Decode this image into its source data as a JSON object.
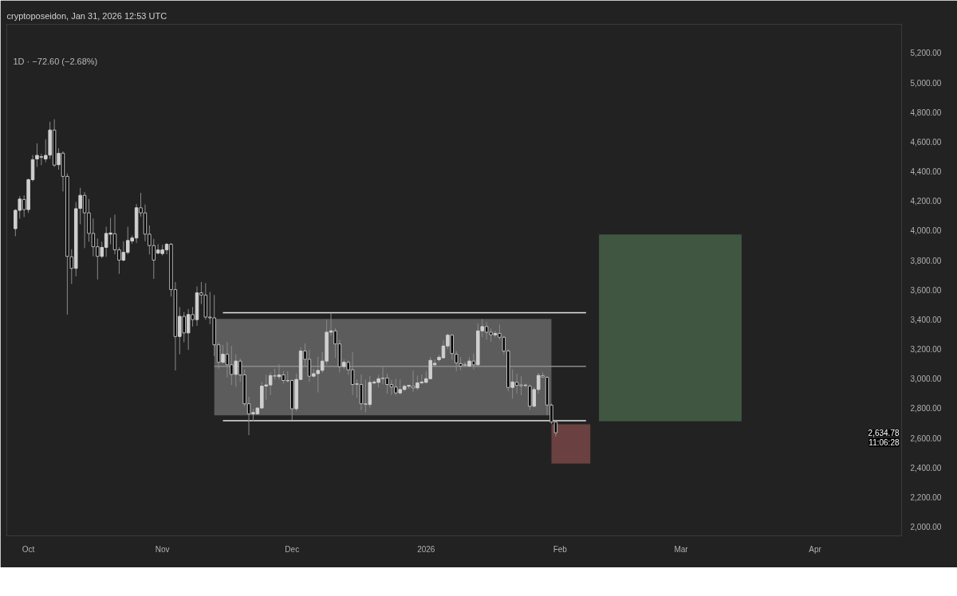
{
  "chart_data": {
    "type": "candlestick",
    "subtitle": "cryptoposeidon, Jan 31, 2026 12:53 UTC",
    "title": "1D · −72.60 (−2.68%)",
    "x": [
      "2025-09-28",
      "2025-09-29",
      "2025-09-30",
      "2025-10-01",
      "2025-10-02",
      "2025-10-03",
      "2025-10-04",
      "2025-10-05",
      "2025-10-06",
      "2025-10-07",
      "2025-10-08",
      "2025-10-09",
      "2025-10-10",
      "2025-10-11",
      "2025-10-12",
      "2025-10-13",
      "2025-10-14",
      "2025-10-15",
      "2025-10-16",
      "2025-10-17",
      "2025-10-18",
      "2025-10-19",
      "2025-10-20",
      "2025-10-21",
      "2025-10-22",
      "2025-10-23",
      "2025-10-24",
      "2025-10-25",
      "2025-10-26",
      "2025-10-27",
      "2025-10-28",
      "2025-10-29",
      "2025-10-30",
      "2025-10-31",
      "2025-11-01",
      "2025-11-02",
      "2025-11-03",
      "2025-11-04",
      "2025-11-05",
      "2025-11-06",
      "2025-11-07",
      "2025-11-08",
      "2025-11-09",
      "2025-11-10",
      "2025-11-11",
      "2025-11-12",
      "2025-11-13",
      "2025-11-14",
      "2025-11-15",
      "2025-11-16",
      "2025-11-17",
      "2025-11-18",
      "2025-11-19",
      "2025-11-20",
      "2025-11-21",
      "2025-11-22",
      "2025-11-23",
      "2025-11-24",
      "2025-11-25",
      "2025-11-26",
      "2025-11-27",
      "2025-11-28",
      "2025-11-29",
      "2025-11-30",
      "2025-12-01",
      "2025-12-02",
      "2025-12-03",
      "2025-12-04",
      "2025-12-05",
      "2025-12-06",
      "2025-12-07",
      "2025-12-08",
      "2025-12-09",
      "2025-12-10",
      "2025-12-11",
      "2025-12-12",
      "2025-12-13",
      "2025-12-14",
      "2025-12-15",
      "2025-12-16",
      "2025-12-17",
      "2025-12-18",
      "2025-12-19",
      "2025-12-20",
      "2025-12-21",
      "2025-12-22",
      "2025-12-23",
      "2025-12-24",
      "2025-12-25",
      "2025-12-26",
      "2025-12-27",
      "2025-12-28",
      "2025-12-29",
      "2025-12-30",
      "2025-12-31",
      "2026-01-01",
      "2026-01-02",
      "2026-01-03",
      "2026-01-04",
      "2026-01-05",
      "2026-01-06",
      "2026-01-07",
      "2026-01-08",
      "2026-01-09",
      "2026-01-10",
      "2026-01-11",
      "2026-01-12",
      "2026-01-13",
      "2026-01-14",
      "2026-01-15",
      "2026-01-16",
      "2026-01-17",
      "2026-01-18",
      "2026-01-19",
      "2026-01-20",
      "2026-01-21",
      "2026-01-22",
      "2026-01-23",
      "2026-01-24",
      "2026-01-25",
      "2026-01-26",
      "2026-01-27",
      "2026-01-28",
      "2026-01-29",
      "2026-01-30",
      "2026-01-31"
    ],
    "ohlc": [
      [
        4013,
        4145,
        3962,
        4137
      ],
      [
        4137,
        4233,
        4081,
        4213
      ],
      [
        4210,
        4238,
        4091,
        4142
      ],
      [
        4142,
        4352,
        4120,
        4344
      ],
      [
        4344,
        4510,
        4332,
        4479
      ],
      [
        4484,
        4589,
        4430,
        4508
      ],
      [
        4500,
        4518,
        4442,
        4494
      ],
      [
        4484,
        4617,
        4462,
        4508
      ],
      [
        4510,
        4735,
        4484,
        4679
      ],
      [
        4679,
        4752,
        4430,
        4442
      ],
      [
        4445,
        4556,
        4411,
        4522
      ],
      [
        4523,
        4535,
        4264,
        4366
      ],
      [
        4366,
        4386,
        3433,
        3826
      ],
      [
        3823,
        3874,
        3640,
        3745
      ],
      [
        3745,
        4193,
        3691,
        4148
      ],
      [
        4150,
        4289,
        4043,
        4238
      ],
      [
        4238,
        4260,
        3882,
        4120
      ],
      [
        4120,
        4213,
        3925,
        3981
      ],
      [
        3981,
        4082,
        3826,
        3891
      ],
      [
        3891,
        3947,
        3670,
        3826
      ],
      [
        3826,
        3925,
        3814,
        3887
      ],
      [
        3887,
        4026,
        3823,
        3981
      ],
      [
        3976,
        4086,
        3908,
        3984
      ],
      [
        3979,
        4108,
        3840,
        3870
      ],
      [
        3870,
        3887,
        3708,
        3801
      ],
      [
        3801,
        3928,
        3792,
        3853
      ],
      [
        3853,
        4026,
        3840,
        3933
      ],
      [
        3930,
        3967,
        3911,
        3950
      ],
      [
        3950,
        4179,
        3916,
        4154
      ],
      [
        4154,
        4255,
        4094,
        4120
      ],
      [
        4120,
        4176,
        3928,
        3976
      ],
      [
        3976,
        4035,
        3840,
        3899
      ],
      [
        3899,
        3945,
        3674,
        3801
      ],
      [
        3848,
        3908,
        3840,
        3869
      ],
      [
        3845,
        3904,
        3832,
        3870
      ],
      [
        3870,
        3916,
        3840,
        3908
      ],
      [
        3908,
        3916,
        3555,
        3602
      ],
      [
        3602,
        3653,
        3056,
        3285
      ],
      [
        3285,
        3484,
        3165,
        3421
      ],
      [
        3421,
        3450,
        3246,
        3309
      ],
      [
        3309,
        3470,
        3195,
        3433
      ],
      [
        3433,
        3484,
        3352,
        3399
      ],
      [
        3399,
        3623,
        3357,
        3580
      ],
      [
        3580,
        3653,
        3504,
        3565
      ],
      [
        3565,
        3645,
        3399,
        3416
      ],
      [
        3416,
        3586,
        3368,
        3411
      ],
      [
        3411,
        3565,
        3153,
        3229
      ],
      [
        3229,
        3246,
        3068,
        3111
      ],
      [
        3111,
        3229,
        3102,
        3165
      ],
      [
        3165,
        3246,
        3009,
        3094
      ],
      [
        3094,
        3221,
        2958,
        3029
      ],
      [
        3029,
        3165,
        2944,
        3119
      ],
      [
        3119,
        3136,
        2978,
        3026
      ],
      [
        3026,
        3063,
        2814,
        2831
      ],
      [
        2831,
        2877,
        2619,
        2763
      ],
      [
        2763,
        2797,
        2712,
        2771
      ],
      [
        2763,
        2806,
        2758,
        2802
      ],
      [
        2802,
        2978,
        2797,
        2950
      ],
      [
        2950,
        3026,
        2856,
        2958
      ],
      [
        2958,
        3043,
        2890,
        3021
      ],
      [
        3021,
        3068,
        2995,
        3017
      ],
      [
        3014,
        3097,
        2995,
        3026
      ],
      [
        3026,
        3051,
        2966,
        2988
      ],
      [
        2988,
        3051,
        2975,
        2985
      ],
      [
        2988,
        2995,
        2721,
        2797
      ],
      [
        2797,
        3034,
        2780,
        2995
      ],
      [
        2995,
        3212,
        2992,
        3187
      ],
      [
        3187,
        3238,
        3080,
        3131
      ],
      [
        3131,
        3195,
        2978,
        3017
      ],
      [
        3017,
        3068,
        3009,
        3034
      ],
      [
        3034,
        3148,
        2907,
        3056
      ],
      [
        3056,
        3179,
        3039,
        3119
      ],
      [
        3119,
        3399,
        3094,
        3314
      ],
      [
        3314,
        3441,
        3289,
        3323
      ],
      [
        3323,
        3340,
        3141,
        3235
      ],
      [
        3235,
        3263,
        3043,
        3082
      ],
      [
        3082,
        3131,
        3063,
        3111
      ],
      [
        3111,
        3124,
        3026,
        3060
      ],
      [
        3060,
        3179,
        2890,
        2961
      ],
      [
        2967,
        2995,
        2873,
        2961
      ],
      [
        2961,
        3029,
        2788,
        2831
      ],
      [
        2831,
        2995,
        2772,
        2826
      ],
      [
        2826,
        3017,
        2805,
        2975
      ],
      [
        2971,
        2992,
        2961,
        2978
      ],
      [
        2975,
        3026,
        2941,
        3000
      ],
      [
        3005,
        3077,
        2961,
        3000
      ],
      [
        3005,
        3034,
        2899,
        2961
      ],
      [
        2961,
        2992,
        2890,
        2944
      ],
      [
        2944,
        3000,
        2887,
        2904
      ],
      [
        2904,
        2995,
        2893,
        2927
      ],
      [
        2927,
        2961,
        2916,
        2949
      ],
      [
        2949,
        2958,
        2933,
        2955
      ],
      [
        2949,
        3056,
        2911,
        2938
      ],
      [
        2938,
        3022,
        2924,
        2972
      ],
      [
        2972,
        3029,
        2961,
        2978
      ],
      [
        2975,
        3051,
        2972,
        3000
      ],
      [
        3000,
        3148,
        2995,
        3124
      ],
      [
        3094,
        3131,
        3080,
        3104
      ],
      [
        3128,
        3161,
        3114,
        3145
      ],
      [
        3141,
        3263,
        3136,
        3221
      ],
      [
        3221,
        3306,
        3199,
        3294
      ],
      [
        3294,
        3301,
        3128,
        3170
      ],
      [
        3165,
        3187,
        3051,
        3107
      ],
      [
        3102,
        3145,
        3056,
        3085
      ],
      [
        3097,
        3114,
        3077,
        3090
      ],
      [
        3085,
        3145,
        3077,
        3119
      ],
      [
        3119,
        3170,
        3063,
        3094
      ],
      [
        3094,
        3374,
        3090,
        3323
      ],
      [
        3323,
        3402,
        3280,
        3352
      ],
      [
        3352,
        3382,
        3263,
        3314
      ],
      [
        3314,
        3340,
        3250,
        3297
      ],
      [
        3296,
        3323,
        3280,
        3306
      ],
      [
        3306,
        3365,
        3263,
        3280
      ],
      [
        3280,
        3289,
        3165,
        3187
      ],
      [
        3187,
        3199,
        2916,
        2941
      ],
      [
        2941,
        3063,
        2865,
        2978
      ],
      [
        2975,
        3034,
        2899,
        2955
      ],
      [
        2958,
        3017,
        2890,
        2952
      ],
      [
        2954,
        2967,
        2941,
        2957
      ],
      [
        2950,
        2961,
        2788,
        2814
      ],
      [
        2814,
        2944,
        2809,
        2927
      ],
      [
        2927,
        3039,
        2899,
        3022
      ],
      [
        3021,
        3043,
        3005,
        3012
      ],
      [
        3009,
        3017,
        2754,
        2822
      ],
      [
        2822,
        2831,
        2695,
        2707
      ],
      [
        2707,
        2717,
        2610,
        2634.78
      ]
    ],
    "xlim": [
      "2025-09-26",
      "2026-04-21"
    ],
    "xticks": [
      {
        "value": "2025-10-01",
        "label": "Oct"
      },
      {
        "value": "2025-11-01",
        "label": "Nov"
      },
      {
        "value": "2025-12-01",
        "label": "Dec"
      },
      {
        "value": "2026-01-01",
        "label": "2026"
      },
      {
        "value": "2026-02-01",
        "label": "Feb"
      },
      {
        "value": "2026-03-01",
        "label": "Mar"
      },
      {
        "value": "2026-04-01",
        "label": "Apr"
      }
    ],
    "ylim": [
      1939,
      5393
    ],
    "yticks": [
      {
        "value": 2000,
        "label": "2,000.00"
      },
      {
        "value": 2200,
        "label": "2,200.00"
      },
      {
        "value": 2400,
        "label": "2,400.00"
      },
      {
        "value": 2600,
        "label": "2,600.00"
      },
      {
        "value": 2800,
        "label": "2,800.00"
      },
      {
        "value": 3000,
        "label": "3,000.00"
      },
      {
        "value": 3200,
        "label": "3,200.00"
      },
      {
        "value": 3400,
        "label": "3,400.00"
      },
      {
        "value": 3600,
        "label": "3,600.00"
      },
      {
        "value": 3800,
        "label": "3,800.00"
      },
      {
        "value": 4000,
        "label": "4,000.00"
      },
      {
        "value": 4200,
        "label": "4,200.00"
      },
      {
        "value": 4400,
        "label": "4,400.00"
      },
      {
        "value": 4600,
        "label": "4,600.00"
      },
      {
        "value": 4800,
        "label": "4,800.00"
      },
      {
        "value": 5000,
        "label": "5,000.00"
      },
      {
        "value": 5200,
        "label": "5,200.00"
      }
    ],
    "grid": false,
    "bands": [
      {
        "axis": "y",
        "from": 2753,
        "to": 3404,
        "color": "#5c5c5c"
      },
      {
        "axis": "y",
        "from": 2712,
        "to": 3974,
        "color": "#415641"
      },
      {
        "axis": "y",
        "from": 2427,
        "to": 2692,
        "color": "#6a4140"
      }
    ],
    "ref_lines": [
      {
        "axis": "y",
        "value": 3445,
        "color": "#e6e6e6"
      },
      {
        "axis": "y",
        "value": 3084,
        "color": "#8c8c8c"
      },
      {
        "axis": "y",
        "value": 2717,
        "color": "#e6e6e6"
      }
    ],
    "annotations": [
      "2,634.78",
      "11:06:28"
    ]
  }
}
